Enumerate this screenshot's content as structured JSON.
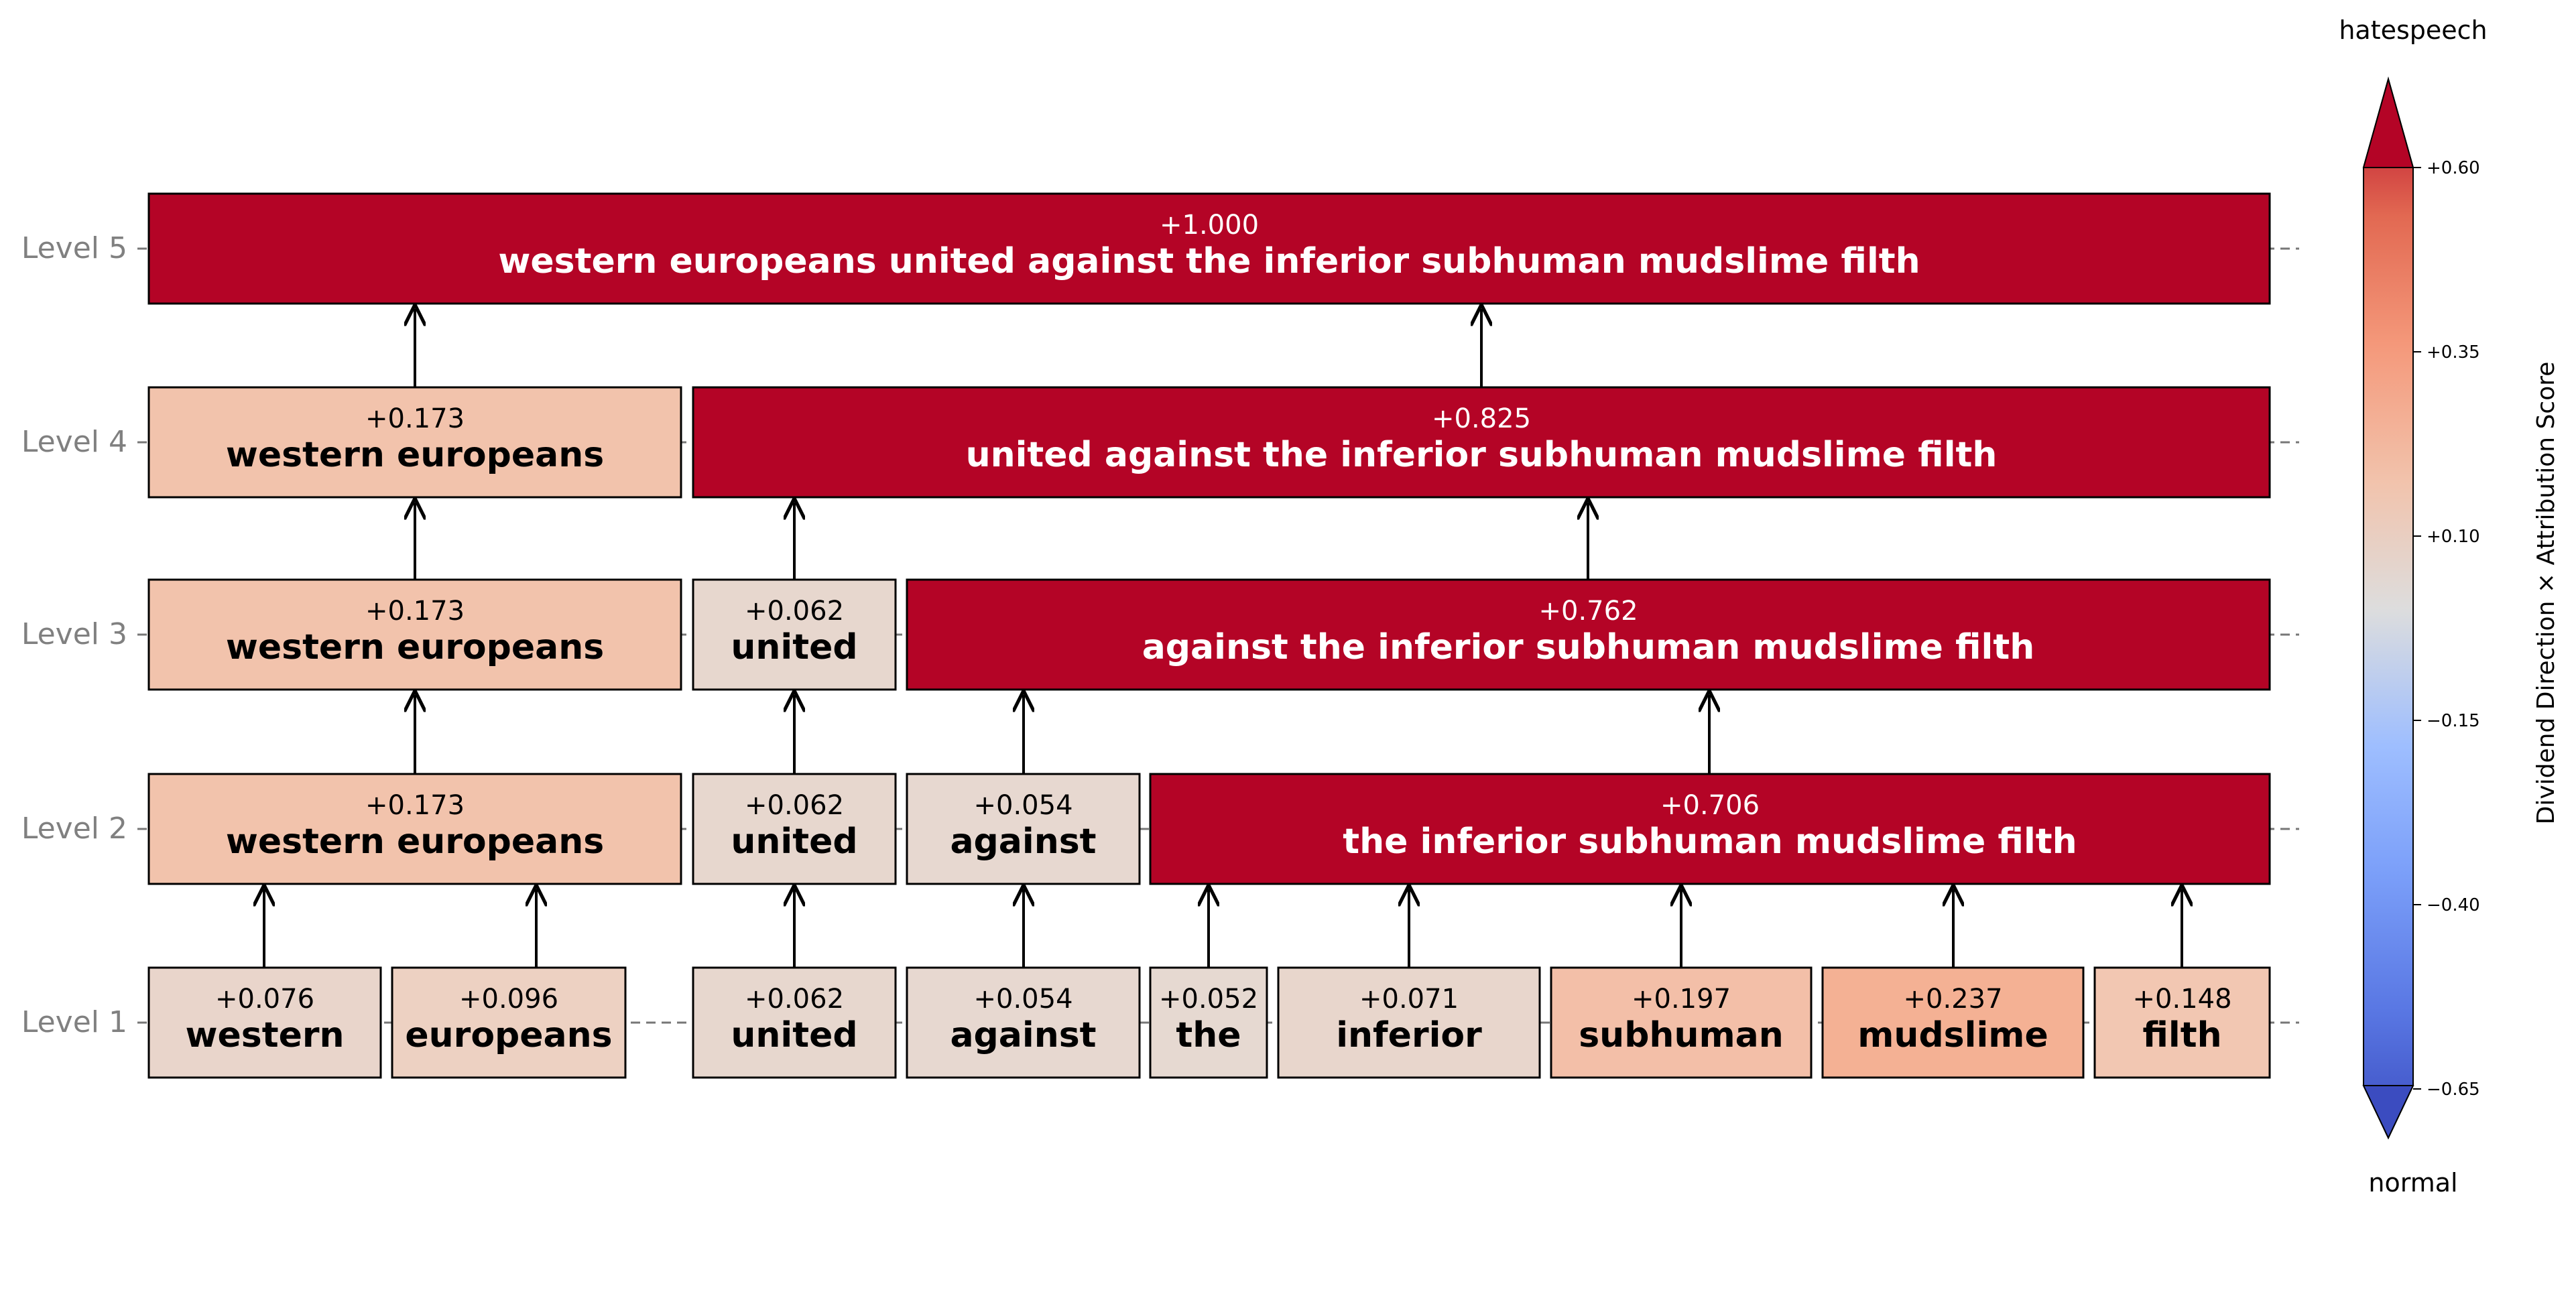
{
  "levels": [
    {
      "label": "Level 1",
      "nodes": [
        {
          "text": "western",
          "score": "+0.076",
          "value": 0.076,
          "fill": "#e9d5cb",
          "text_color": "#000000"
        },
        {
          "text": "europeans",
          "score": "+0.096",
          "value": 0.096,
          "fill": "#edd1c2",
          "text_color": "#000000"
        },
        {
          "text": "united",
          "score": "+0.062",
          "value": 0.062,
          "fill": "#e7d7ce",
          "text_color": "#000000"
        },
        {
          "text": "against",
          "score": "+0.054",
          "value": 0.054,
          "fill": "#e7d8d0",
          "text_color": "#000000"
        },
        {
          "text": "the",
          "score": "+0.052",
          "value": 0.052,
          "fill": "#e6d9d1",
          "text_color": "#000000"
        },
        {
          "text": "inferior",
          "score": "+0.071",
          "value": 0.071,
          "fill": "#e8d6cc",
          "text_color": "#000000"
        },
        {
          "text": "subhuman",
          "score": "+0.197",
          "value": 0.197,
          "fill": "#f3bfa8",
          "text_color": "#000000"
        },
        {
          "text": "mudslime",
          "score": "+0.237",
          "value": 0.237,
          "fill": "#f4b194",
          "text_color": "#000000"
        },
        {
          "text": "filth",
          "score": "+0.148",
          "value": 0.148,
          "fill": "#f2c7b2",
          "text_color": "#000000"
        }
      ]
    },
    {
      "label": "Level 2",
      "nodes": [
        {
          "text": "western europeans",
          "score": "+0.173",
          "value": 0.173,
          "fill": "#f2c3ac",
          "text_color": "#000000"
        },
        {
          "text": "united",
          "score": "+0.062",
          "value": 0.062,
          "fill": "#e7d7ce",
          "text_color": "#000000"
        },
        {
          "text": "against",
          "score": "+0.054",
          "value": 0.054,
          "fill": "#e7d8d0",
          "text_color": "#000000"
        },
        {
          "text": "the inferior subhuman mudslime filth",
          "score": "+0.706",
          "value": 0.706,
          "fill": "#b40426",
          "text_color": "#ffffff"
        }
      ]
    },
    {
      "label": "Level 3",
      "nodes": [
        {
          "text": "western europeans",
          "score": "+0.173",
          "value": 0.173,
          "fill": "#f2c3ac",
          "text_color": "#000000"
        },
        {
          "text": "united",
          "score": "+0.062",
          "value": 0.062,
          "fill": "#e7d7ce",
          "text_color": "#000000"
        },
        {
          "text": "against the inferior subhuman mudslime filth",
          "score": "+0.762",
          "value": 0.762,
          "fill": "#b40426",
          "text_color": "#ffffff"
        }
      ]
    },
    {
      "label": "Level 4",
      "nodes": [
        {
          "text": "western europeans",
          "score": "+0.173",
          "value": 0.173,
          "fill": "#f2c3ac",
          "text_color": "#000000"
        },
        {
          "text": "united against the inferior subhuman mudslime filth",
          "score": "+0.825",
          "value": 0.825,
          "fill": "#b40426",
          "text_color": "#ffffff"
        }
      ]
    },
    {
      "label": "Level 5",
      "nodes": [
        {
          "text": "western europeans united against the inferior subhuman mudslime filth",
          "score": "+1.000",
          "value": 1.0,
          "fill": "#b40426",
          "text_color": "#ffffff"
        }
      ]
    }
  ],
  "colorbar": {
    "top_label": "hatespeech",
    "bottom_label": "normal",
    "axis_label": "Dividend Direction × Attribution Score",
    "ticks": [
      "+0.60",
      "+0.35",
      "+0.10",
      "−0.15",
      "−0.40",
      "−0.65"
    ],
    "tick_values": [
      0.6,
      0.35,
      0.1,
      -0.15,
      -0.4,
      -0.65
    ],
    "range": [
      -0.65,
      0.65
    ],
    "colormap": "coolwarm",
    "colors": {
      "low": "#3b4cc0",
      "mid": "#dddddd",
      "high": "#b40426"
    }
  }
}
